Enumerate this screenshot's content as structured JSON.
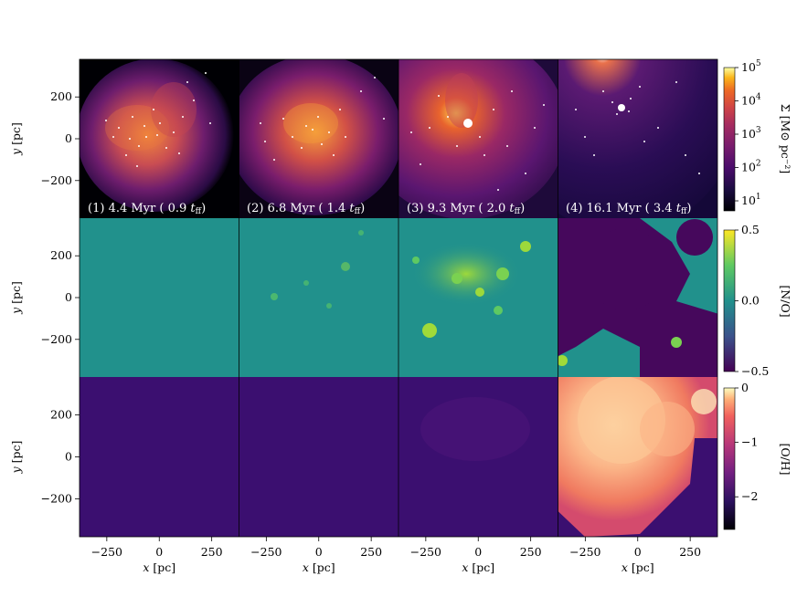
{
  "chart_data": {
    "type": "heatmap",
    "description_grid": "3 rows x 4 columns of simulation snapshots; shared x and y axes",
    "x_ticks": [
      -250,
      0,
      250
    ],
    "y_ticks": [
      200,
      0,
      -200
    ],
    "x_range": [
      -380,
      380
    ],
    "y_range": [
      -380,
      380
    ],
    "xlabel_var": "x",
    "ylabel_var": "y",
    "axis_unit": "pc",
    "snapshots": [
      {
        "index": "(1)",
        "time": "4.4 Myr",
        "tff": "0.9"
      },
      {
        "index": "(2)",
        "time": "6.8 Myr",
        "tff": "1.4"
      },
      {
        "index": "(3)",
        "time": "9.3 Myr",
        "tff": "2.0"
      },
      {
        "index": "(4)",
        "time": "16.1 Myr",
        "tff": "3.4"
      }
    ],
    "rows": [
      {
        "quantity": "Σ",
        "colorbar_label": "Σ [M⊙ pc⁻²]",
        "colormap": "inferno",
        "scale": "log",
        "colorbar_ticks": [
          "10^5",
          "10^4",
          "10^3",
          "10^2",
          "10^1"
        ],
        "range": [
          5,
          100000
        ]
      },
      {
        "quantity": "[N/O]",
        "colorbar_label": "[N/O]",
        "colormap": "viridis",
        "scale": "linear",
        "colorbar_ticks": [
          "0.5",
          "0.0",
          "−0.5"
        ],
        "range": [
          -0.5,
          0.5
        ]
      },
      {
        "quantity": "[O/H]",
        "colorbar_label": "[O/H]",
        "colormap": "magma",
        "scale": "linear",
        "colorbar_ticks": [
          "0",
          "−1",
          "−2"
        ],
        "range": [
          -2.6,
          0
        ]
      }
    ],
    "colors": {
      "viridis_mid": "#21918c",
      "viridis_low": "#46085c",
      "magma_low": "#3b0f70",
      "inferno_dark": "#000004"
    }
  }
}
